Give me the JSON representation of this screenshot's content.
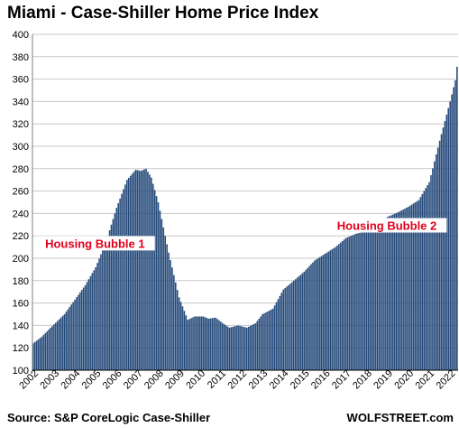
{
  "title": "Miami - Case-Shiller Home Price Index",
  "source": "Source: S&P CoreLogic Case-Shiller",
  "brand": "WOLFSTREET.com",
  "colors": {
    "bar": "#254a7a",
    "annotation": "#e0001b",
    "grid": "#c8c8c8"
  },
  "chart_data": {
    "type": "bar",
    "title": "Miami - Case-Shiller Home Price Index",
    "xlabel": "",
    "ylabel": "",
    "ylim": [
      100,
      400
    ],
    "yticks": [
      100,
      120,
      140,
      160,
      180,
      200,
      220,
      240,
      260,
      280,
      300,
      320,
      340,
      360,
      380,
      400
    ],
    "xtick_labels": [
      "2002",
      "2003",
      "2004",
      "2005",
      "2006",
      "2007",
      "2008",
      "2009",
      "2010",
      "2011",
      "2012",
      "2013",
      "2014",
      "2015",
      "2016",
      "2017",
      "2018",
      "2019",
      "2020",
      "2021",
      "2022"
    ],
    "grid": "horizontal",
    "frequency": "monthly",
    "start": "2002-01",
    "anchors": [
      [
        "2002-01",
        124
      ],
      [
        "2002-06",
        130
      ],
      [
        "2003-01",
        141
      ],
      [
        "2003-07",
        150
      ],
      [
        "2004-01",
        163
      ],
      [
        "2004-07",
        176
      ],
      [
        "2005-01",
        192
      ],
      [
        "2005-07",
        215
      ],
      [
        "2006-01",
        245
      ],
      [
        "2006-07",
        270
      ],
      [
        "2006-12",
        279
      ],
      [
        "2007-03",
        278
      ],
      [
        "2007-06",
        280
      ],
      [
        "2007-09",
        272
      ],
      [
        "2008-01",
        250
      ],
      [
        "2008-07",
        205
      ],
      [
        "2009-01",
        165
      ],
      [
        "2009-06",
        145
      ],
      [
        "2009-10",
        148
      ],
      [
        "2010-03",
        148
      ],
      [
        "2010-06",
        146
      ],
      [
        "2010-10",
        147
      ],
      [
        "2011-03",
        141
      ],
      [
        "2011-06",
        138
      ],
      [
        "2011-11",
        140
      ],
      [
        "2012-04",
        138
      ],
      [
        "2012-09",
        142
      ],
      [
        "2013-01",
        150
      ],
      [
        "2013-07",
        155
      ],
      [
        "2014-01",
        172
      ],
      [
        "2014-07",
        180
      ],
      [
        "2015-01",
        188
      ],
      [
        "2015-07",
        198
      ],
      [
        "2016-01",
        204
      ],
      [
        "2016-07",
        210
      ],
      [
        "2017-01",
        218
      ],
      [
        "2017-07",
        222
      ],
      [
        "2018-01",
        224
      ],
      [
        "2018-07",
        230
      ],
      [
        "2019-01",
        237
      ],
      [
        "2019-07",
        241
      ],
      [
        "2020-01",
        246
      ],
      [
        "2020-07",
        252
      ],
      [
        "2021-01",
        268
      ],
      [
        "2021-07",
        305
      ],
      [
        "2022-01",
        340
      ],
      [
        "2022-04",
        359
      ],
      [
        "2022-05",
        371
      ]
    ],
    "annotations": [
      {
        "text": "Housing Bubble 1",
        "x": "2005-01",
        "y": 211
      },
      {
        "text": "Housing Bubble 2",
        "x": "2019-01",
        "y": 227
      }
    ]
  }
}
